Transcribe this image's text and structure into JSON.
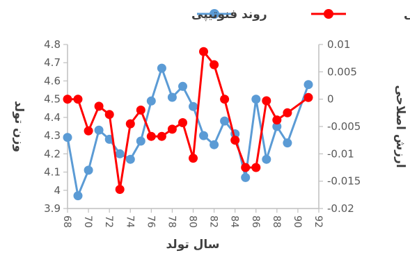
{
  "chart_data": {
    "type": "line",
    "x": [
      68,
      69,
      70,
      71,
      72,
      73,
      74,
      75,
      76,
      77,
      78,
      79,
      80,
      81,
      82,
      83,
      84,
      85,
      86,
      87,
      88,
      89,
      91
    ],
    "x_ticks": [
      "68",
      "70",
      "72",
      "74",
      "76",
      "78",
      "80",
      "82",
      "84",
      "86",
      "88",
      "90",
      "92"
    ],
    "xlim": [
      68,
      92
    ],
    "xlabel": "سال تولد",
    "ylabel_left": "وزن تولد",
    "ylabel_right": "ارزش اصلاحی",
    "ylim_left": [
      3.9,
      4.8
    ],
    "ylim_right": [
      -0.02,
      0.01
    ],
    "yticks_left": [
      "3.9",
      "4",
      "4.1",
      "4.2",
      "4.3",
      "4.4",
      "4.5",
      "4.6",
      "4.7",
      "4.8"
    ],
    "yticks_right": [
      "-0.02",
      "-0.015",
      "-0.01",
      "-0.005",
      "0",
      "0.005",
      "0.01"
    ],
    "legend_position": "top",
    "grid": false,
    "series": [
      {
        "name": "روند فنوتیپی",
        "axis": "left",
        "color": "#5B9BD5",
        "values": [
          4.29,
          3.97,
          4.11,
          4.33,
          4.28,
          4.2,
          4.17,
          4.27,
          4.49,
          4.67,
          4.51,
          4.57,
          4.46,
          4.3,
          4.25,
          4.38,
          4.31,
          4.07,
          4.5,
          4.17,
          4.35,
          4.26,
          4.58
        ]
      },
      {
        "name": "روند ژنتیکی",
        "axis": "right",
        "color": "#FF0000",
        "values": [
          0.0,
          0.0,
          -0.0058,
          -0.0013,
          -0.0028,
          -0.0165,
          -0.0045,
          -0.002,
          -0.0068,
          -0.0068,
          -0.0055,
          -0.0043,
          -0.0108,
          0.0087,
          0.0063,
          0.0,
          -0.0075,
          -0.0125,
          -0.0125,
          -0.0003,
          -0.0038,
          -0.0025,
          0.0003
        ]
      }
    ]
  }
}
